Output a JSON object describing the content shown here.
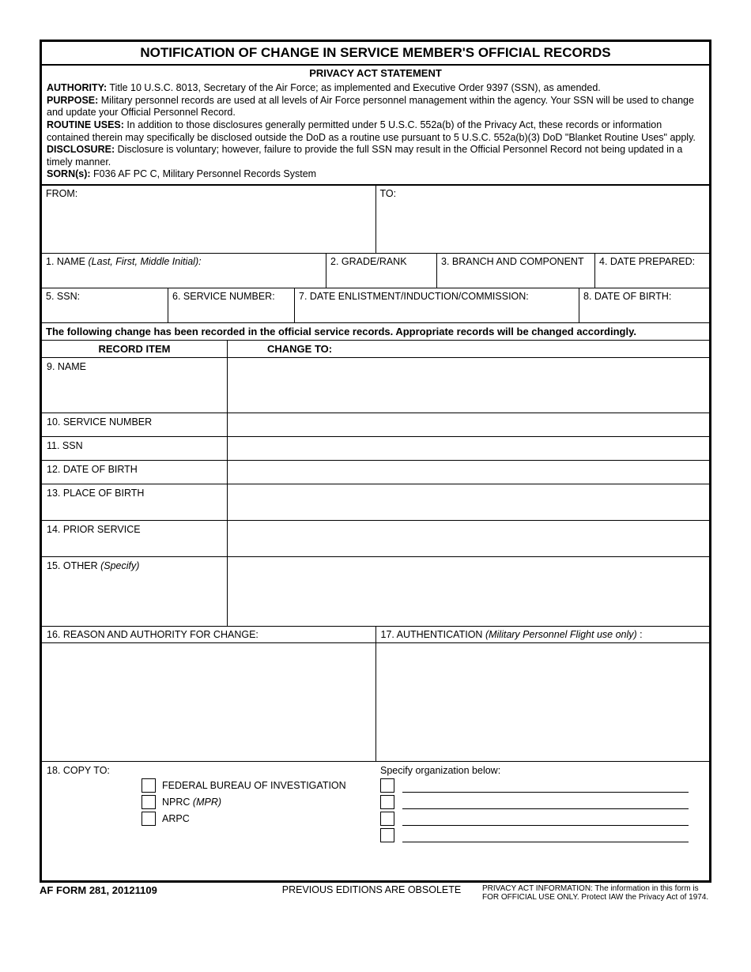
{
  "title": "NOTIFICATION OF CHANGE IN SERVICE MEMBER'S OFFICIAL RECORDS",
  "privacy": {
    "header": "PRIVACY ACT STATEMENT",
    "authority_label": "AUTHORITY:",
    "authority_text": " Title 10 U.S.C. 8013, Secretary of the Air Force; as implemented and Executive Order 9397 (SSN), as amended.",
    "purpose_label": "PURPOSE:",
    "purpose_text": "  Military personnel records are used at all levels of Air Force personnel management within the agency.  Your SSN will be used to change and update  your Official Personnel Record.",
    "routine_label": "ROUTINE USES:",
    "routine_text": " In addition to those disclosures generally permitted under 5 U.S.C. 552a(b) of the Privacy Act, these records or information contained therein may specifically be disclosed outside the DoD as a routine use pursuant to 5 U.S.C. 552a(b)(3) DoD \"Blanket Routine Uses\" apply.",
    "disclosure_label": "DISCLOSURE:",
    "disclosure_text": "  Disclosure is voluntary; however, failure to provide the full SSN may result in the Official Personnel Record not being updated in a timely manner.",
    "sorn_label": "SORN(s):",
    "sorn_text": "  F036 AF PC C, Military Personnel Records System"
  },
  "fields": {
    "from": "FROM:",
    "to": "TO:",
    "f1": "1. NAME  ",
    "f1_hint": "(Last, First, Middle Initial):",
    "f2": "2. GRADE/RANK",
    "f3": "3. BRANCH AND COMPONENT",
    "f4": "4.  DATE PREPARED:",
    "f5": "5. SSN:",
    "f6": "6. SERVICE NUMBER:",
    "f7": "7. DATE ENLISTMENT/INDUCTION/COMMISSION:",
    "f8": "8. DATE OF BIRTH:"
  },
  "notice": "The following change has been recorded in the official service records. Appropriate records will be changed accordingly.",
  "headers": {
    "record_item": "RECORD ITEM",
    "change_to": "CHANGE TO:"
  },
  "records": {
    "r9": "9. NAME",
    "r10": "10. SERVICE NUMBER",
    "r11": "11. SSN",
    "r12": "12. DATE OF BIRTH",
    "r13": "13. PLACE OF BIRTH",
    "r14": "14. PRIOR SERVICE",
    "r15": "15. OTHER  ",
    "r15_hint": "(Specify)"
  },
  "bottom": {
    "f16": "16. REASON AND AUTHORITY FOR CHANGE:",
    "f17": "17. AUTHENTICATION ",
    "f17_hint": "(Military Personnel Flight use only)",
    "f17_colon": " :",
    "f18": "18. COPY TO:",
    "cb1": "FEDERAL BUREAU OF INVESTIGATION",
    "cb2": "NPRC ",
    "cb2_hint": "(MPR)",
    "cb3": "ARPC",
    "specify": "Specify organization below:"
  },
  "footer": {
    "form_id": "AF FORM 281, 20121109",
    "obsolete": "PREVIOUS EDITIONS ARE OBSOLETE",
    "privacy_note": "PRIVACY ACT INFORMATION:  The information in this form is FOR OFFICIAL USE ONLY.  Protect IAW the Privacy Act of 1974."
  }
}
